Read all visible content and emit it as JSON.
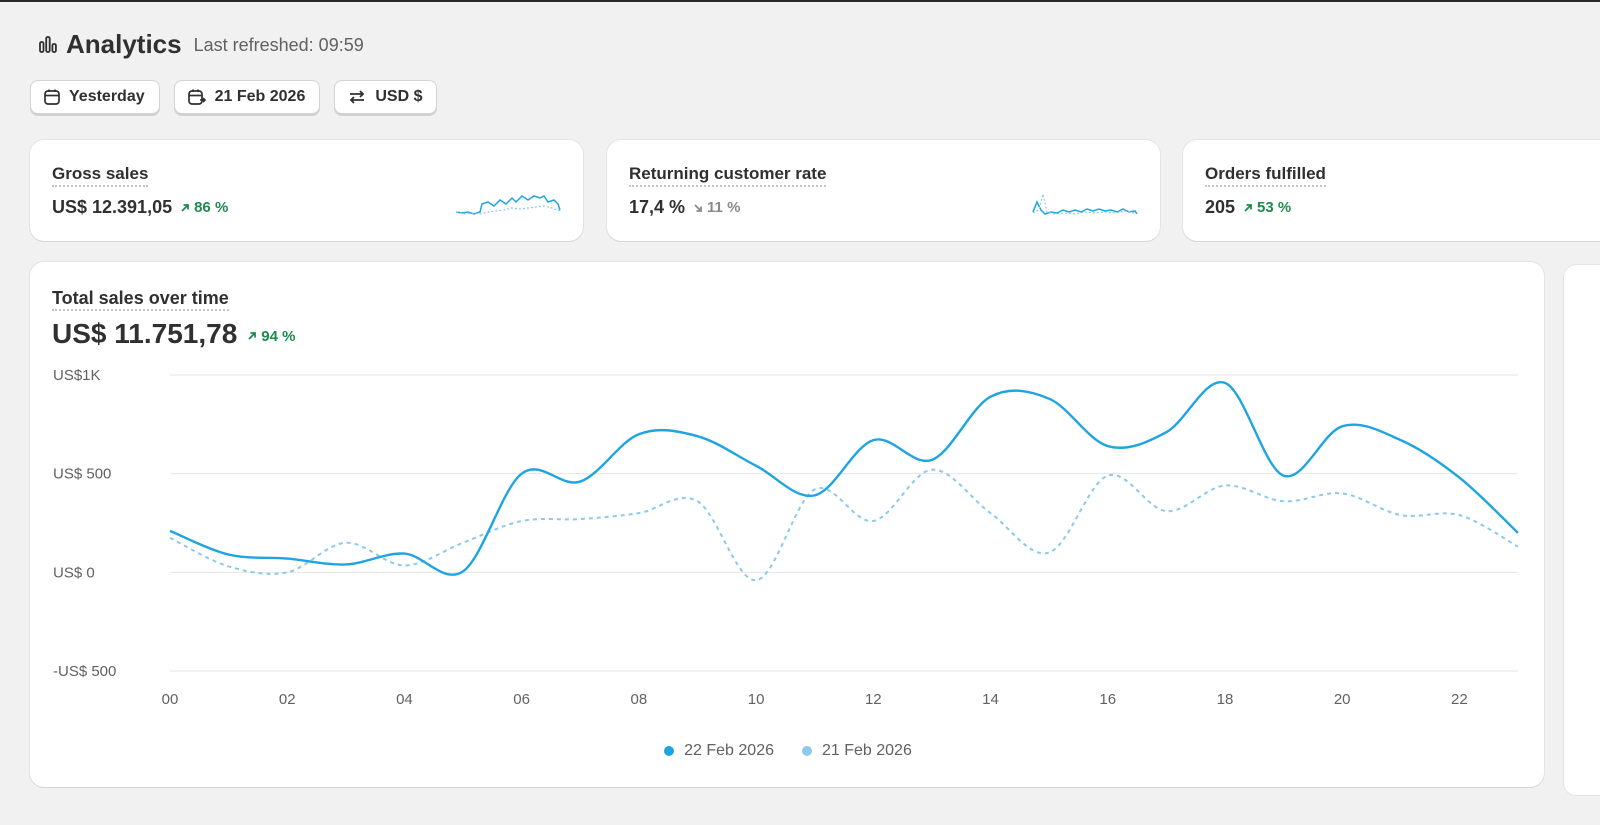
{
  "header": {
    "title": "Analytics",
    "last_refreshed": "Last refreshed: 09:59"
  },
  "filters": [
    {
      "label": "Yesterday",
      "icon": "calendar-icon"
    },
    {
      "label": "21 Feb 2026",
      "icon": "calendar-compare-icon"
    },
    {
      "label": "USD $",
      "icon": "currency-exchange-icon"
    }
  ],
  "metrics": [
    {
      "title": "Gross sales",
      "value": "US$ 12.391,05",
      "delta": "86 %",
      "trend": "up"
    },
    {
      "title": "Returning customer rate",
      "value": "17,4 %",
      "delta": "11 %",
      "trend": "down"
    },
    {
      "title": "Orders fulfilled",
      "value": "205",
      "delta": "53 %",
      "trend": "up"
    }
  ],
  "main_chart": {
    "title": "Total sales over time",
    "value": "US$ 11.751,78",
    "delta": "94 %",
    "trend": "up"
  },
  "colors": {
    "series_current": "#1ea5e0",
    "series_previous": "#8cc9ea",
    "delta_up": "#1f8a4c",
    "delta_down": "#8a8a8a"
  },
  "chart_data": {
    "type": "line",
    "x": [
      "00",
      "01",
      "02",
      "03",
      "04",
      "05",
      "06",
      "07",
      "08",
      "09",
      "10",
      "11",
      "12",
      "13",
      "14",
      "15",
      "16",
      "17",
      "18",
      "19",
      "20",
      "21",
      "22",
      "23"
    ],
    "x_tick_labels": [
      "00",
      "02",
      "04",
      "06",
      "08",
      "10",
      "12",
      "14",
      "16",
      "18",
      "20",
      "22"
    ],
    "y_tick_labels": [
      "US$1K",
      "US$ 500",
      "US$ 0",
      "-US$ 500"
    ],
    "ylim": [
      -500,
      1000
    ],
    "grid": true,
    "legend_position": "bottom-center",
    "series": [
      {
        "name": "22 Feb 2026",
        "style": "solid",
        "values": [
          210,
          90,
          70,
          40,
          95,
          5,
          500,
          460,
          700,
          690,
          540,
          390,
          670,
          570,
          890,
          880,
          640,
          710,
          960,
          490,
          740,
          670,
          480,
          200
        ]
      },
      {
        "name": "21 Feb 2026",
        "style": "dashed",
        "values": [
          175,
          30,
          0,
          150,
          35,
          150,
          260,
          270,
          300,
          360,
          -40,
          420,
          260,
          520,
          300,
          100,
          490,
          310,
          440,
          360,
          400,
          290,
          290,
          130
        ]
      }
    ]
  }
}
